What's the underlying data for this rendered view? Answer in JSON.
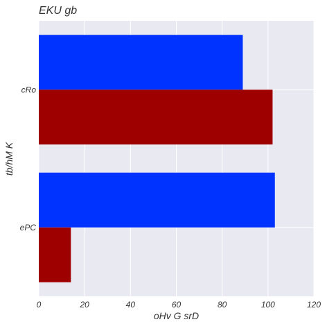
{
  "chart_data": {
    "type": "bar",
    "orientation": "horizontal",
    "title": "EKU  gb",
    "xlabel": "oHv G srD",
    "ylabel": "tb/hM K",
    "categories": [
      "cRo",
      "ePC"
    ],
    "series": [
      {
        "values": [
          89,
          103
        ],
        "color": "#0033ff"
      },
      {
        "values": [
          102,
          14
        ],
        "color": "#9e0000"
      }
    ],
    "xlim": [
      0,
      120
    ],
    "xticks": [
      "0",
      "20",
      "40",
      "60",
      "80",
      "100",
      "120"
    ],
    "grid": true,
    "legend": "none",
    "background_color": "#e9e9f2",
    "grid_color": "#ffffff"
  }
}
